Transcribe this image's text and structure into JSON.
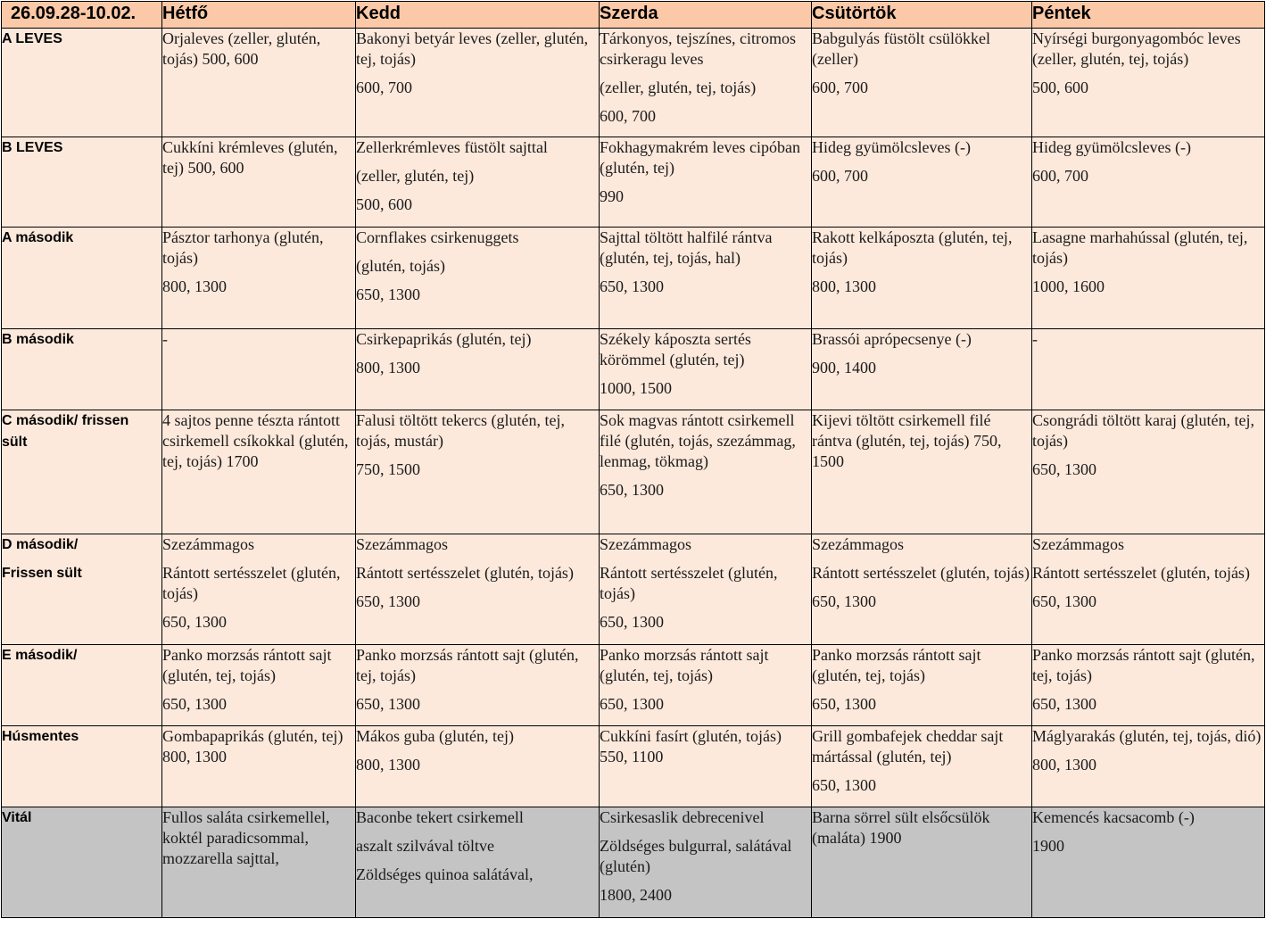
{
  "header": {
    "date_range": "26.09.28-10.02.",
    "days": [
      "Hétfő",
      "Kedd",
      "Szerda",
      "Csütörtök",
      "Péntek"
    ]
  },
  "rows": [
    {
      "label": [
        "A LEVES"
      ],
      "cells": [
        [
          "Orjaleves (zeller, glutén, tojás) 500, 600"
        ],
        [
          "Bakonyi betyár leves (zeller, glutén, tej, tojás)",
          "600, 700"
        ],
        [
          "Tárkonyos, tejszínes, citromos csirkeragu leves",
          "(zeller, glutén, tej, tojás)",
          "600, 700"
        ],
        [
          "Babgulyás füstölt csülökkel (zeller)",
          "600, 700"
        ],
        [
          "Nyírségi burgonyagombóc leves (zeller, glutén, tej, tojás)",
          "500, 600"
        ]
      ]
    },
    {
      "label": [
        "B LEVES"
      ],
      "cells": [
        [
          "Cukkíni krémleves (glutén, tej) 500, 600"
        ],
        [
          "Zellerkrémleves füstölt sajttal",
          "(zeller, glutén, tej)",
          "500, 600"
        ],
        [
          "Fokhagymakrém leves cipóban (glutén, tej)",
          "990"
        ],
        [
          "Hideg gyümölcsleves (-)",
          "600, 700"
        ],
        [
          "Hideg gyümölcsleves (-)",
          "600, 700"
        ]
      ]
    },
    {
      "label": [
        "A második"
      ],
      "cells": [
        [
          "Pásztor tarhonya (glutén, tojás)",
          "800, 1300"
        ],
        [
          "Cornflakes csirkenuggets",
          "(glutén, tojás)",
          "650, 1300"
        ],
        [
          "Sajttal töltött halfilé rántva (glutén, tej, tojás, hal)",
          "650, 1300"
        ],
        [
          "Rakott kelkáposzta (glutén, tej, tojás)",
          "800, 1300"
        ],
        [
          "Lasagne marhahússal (glutén, tej, tojás)",
          "1000, 1600"
        ]
      ]
    },
    {
      "label": [
        "B második"
      ],
      "cells": [
        [
          "-"
        ],
        [
          "Csirkepaprikás (glutén, tej)",
          "800, 1300"
        ],
        [
          "Székely káposzta sertés körömmel (glutén, tej)",
          "1000, 1500"
        ],
        [
          "Brassói aprópecsenye (-)",
          "900, 1400"
        ],
        [
          "-"
        ]
      ]
    },
    {
      "label": [
        "C második/ frissen",
        "sült"
      ],
      "cells": [
        [
          "4 sajtos penne tészta rántott csirkemell csíkokkal (glutén, tej, tojás) 1700"
        ],
        [
          "Falusi töltött tekercs (glutén, tej, tojás, mustár)",
          "750, 1500"
        ],
        [
          "Sok magvas rántott csirkemell filé (glutén, tojás, szezámmag, lenmag, tökmag)",
          "650, 1300"
        ],
        [
          "Kijevi töltött csirkemell filé rántva (glutén, tej, tojás) 750, 1500"
        ],
        [
          "Csongrádi töltött karaj (glutén, tej, tojás)",
          "650, 1300"
        ]
      ]
    },
    {
      "label": [
        "D második/",
        "Frissen sült"
      ],
      "cells": [
        [
          "Szezámmagos",
          "Rántott sertésszelet (glutén, tojás)",
          "650, 1300"
        ],
        [
          "Szezámmagos",
          "Rántott sertésszelet (glutén, tojás)",
          "650, 1300"
        ],
        [
          "Szezámmagos",
          "Rántott sertésszelet (glutén, tojás)",
          "650, 1300"
        ],
        [
          "Szezámmagos",
          "Rántott sertésszelet (glutén, tojás)",
          "650, 1300"
        ],
        [
          "Szezámmagos",
          "Rántott sertésszelet (glutén, tojás)",
          "650, 1300"
        ]
      ]
    },
    {
      "label": [
        "E második/"
      ],
      "cells": [
        [
          "Panko morzsás rántott sajt (glutén, tej, tojás)",
          "650, 1300"
        ],
        [
          "Panko morzsás rántott sajt (glutén, tej, tojás)",
          "650, 1300"
        ],
        [
          "Panko morzsás rántott sajt (glutén, tej, tojás)",
          "650, 1300"
        ],
        [
          "Panko morzsás rántott sajt (glutén, tej, tojás)",
          "650, 1300"
        ],
        [
          "Panko morzsás rántott sajt (glutén, tej, tojás)",
          "650, 1300"
        ]
      ]
    },
    {
      "label": [
        "Húsmentes"
      ],
      "cells": [
        [
          "Gombapaprikás (glutén, tej) 800, 1300"
        ],
        [
          "Mákos guba (glutén, tej)",
          "800, 1300"
        ],
        [
          "Cukkíni fasírt (glutén, tojás) 550, 1100"
        ],
        [
          "Grill gombafejek cheddar sajt mártással (glutén, tej)",
          "650, 1300"
        ],
        [
          "Máglyarakás (glutén, tej, tojás, dió)",
          "800, 1300"
        ]
      ]
    },
    {
      "label": [
        "Vitál"
      ],
      "cells": [
        [
          "Fullos saláta csirkemellel, koktél paradicsommal, mozzarella sajttal,"
        ],
        [
          "Baconbe tekert csirkemell",
          "aszalt szilvával töltve",
          "Zöldséges quinoa salátával,"
        ],
        [
          "Csirkesaslik debrecenivel",
          "Zöldséges bulgurral, salátával (glutén)",
          "1800, 2400"
        ],
        [
          "Barna sörrel sült elsőcsülök (maláta) 1900"
        ],
        [
          "Kemencés kacsacomb (-)",
          "1900"
        ]
      ]
    }
  ]
}
